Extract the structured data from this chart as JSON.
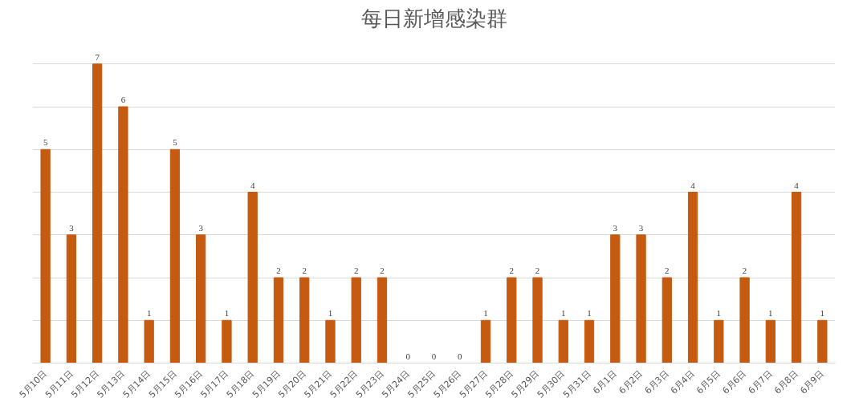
{
  "chart_data": {
    "type": "bar",
    "title": "每日新增感染群",
    "categories": [
      "5月10日",
      "5月11日",
      "5月12日",
      "5月13日",
      "5月14日",
      "5月15日",
      "5月16日",
      "5月17日",
      "5月18日",
      "5月19日",
      "5月20日",
      "5月21日",
      "5月22日",
      "5月23日",
      "5月24日",
      "5月25日",
      "5月26日",
      "5月27日",
      "5月28日",
      "5月29日",
      "5月30日",
      "5月31日",
      "6月1日",
      "6月2日",
      "6月3日",
      "6月4日",
      "6月5日",
      "6月6日",
      "6月7日",
      "6月8日",
      "6月9日"
    ],
    "values": [
      5,
      3,
      7,
      6,
      1,
      5,
      3,
      1,
      4,
      2,
      2,
      1,
      2,
      2,
      0,
      0,
      0,
      1,
      2,
      2,
      1,
      1,
      3,
      3,
      2,
      4,
      1,
      2,
      1,
      4,
      1
    ],
    "color": "#c55a11",
    "data_labels": true,
    "grid": "y",
    "tick_labels": "x",
    "yticks": [
      {
        "value": 0,
        "label": null
      },
      {
        "value": 1,
        "label": null
      },
      {
        "value": 2,
        "label": null
      },
      {
        "value": 3,
        "label": null
      },
      {
        "value": 4,
        "label": null
      },
      {
        "value": 5,
        "label": null
      },
      {
        "value": 6,
        "label": null
      },
      {
        "value": 7,
        "label": null
      }
    ]
  }
}
